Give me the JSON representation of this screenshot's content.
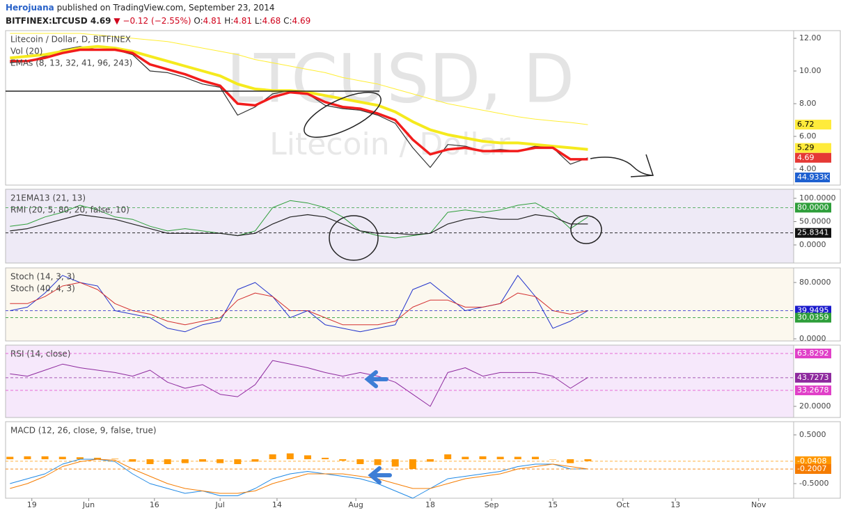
{
  "header": {
    "author": "Herojuana",
    "published": " published on TradingView.com, September 23, 2014",
    "symbol": "BITFINEX:LTCUSD 4.69",
    "change": "▼ −0.12 (−2.55%)",
    "open_label": "O:",
    "open": "4.81",
    "high_label": "H:",
    "high": "4.81",
    "low_label": "L:",
    "low": "4.68",
    "close_label": "C:",
    "close": "4.69"
  },
  "chart_data": [
    {
      "type": "line",
      "legend": [
        "Litecoin / Dollar, D, BITFINEX",
        "Vol (20)",
        "EMAs (8, 13, 32, 41, 96, 243)"
      ],
      "watermark": [
        "LTCUSD, D",
        "Litecoin / Dollar"
      ],
      "vol_label": "44.933K",
      "x": [
        1,
        5,
        9,
        13,
        17,
        21,
        25,
        29,
        33,
        37,
        41,
        45,
        49,
        53,
        57,
        61,
        65,
        69,
        73,
        77,
        81,
        85,
        89,
        93,
        97,
        101,
        105,
        109,
        113,
        117,
        121,
        125,
        129,
        133
      ],
      "xlim": [
        0,
        180
      ],
      "ylim": [
        3.02,
        12.47
      ],
      "yticks": [
        {
          "value": 4,
          "label": "4.00"
        },
        {
          "value": 6,
          "label": "6.00"
        },
        {
          "value": 8,
          "label": "8.00"
        },
        {
          "value": 10,
          "label": "10.00"
        },
        {
          "value": 12,
          "label": "12.00"
        }
      ],
      "series": [
        {
          "color": "#333333",
          "width": 1.2,
          "values": [
            10.5,
            10.6,
            10.9,
            11.3,
            11.5,
            11.3,
            11.3,
            11.0,
            10.0,
            9.9,
            9.6,
            9.2,
            9.0,
            7.3,
            7.8,
            8.6,
            8.8,
            8.6,
            7.9,
            7.7,
            7.6,
            7.3,
            6.8,
            5.3,
            4.1,
            5.5,
            5.4,
            5.1,
            5.2,
            5.1,
            5.4,
            5.3,
            4.3,
            4.69
          ]
        },
        {
          "color": "#ffee33",
          "width": 1,
          "values": [
            12.3,
            12.3,
            12.3,
            12.3,
            12.3,
            12.2,
            12.1,
            12.0,
            11.9,
            11.8,
            11.6,
            11.4,
            11.2,
            11.0,
            10.7,
            10.5,
            10.3,
            10.1,
            9.9,
            9.6,
            9.4,
            9.2,
            8.9,
            8.6,
            8.3,
            8.0,
            7.8,
            7.6,
            7.4,
            7.2,
            7.05,
            6.95,
            6.85,
            6.72
          ]
        },
        {
          "color": "#f5ea1e",
          "width": 4,
          "values": [
            10.8,
            10.9,
            11.0,
            11.2,
            11.4,
            11.5,
            11.4,
            11.2,
            10.9,
            10.6,
            10.3,
            10.0,
            9.7,
            9.2,
            8.9,
            8.8,
            8.8,
            8.7,
            8.5,
            8.3,
            8.1,
            7.9,
            7.5,
            6.9,
            6.4,
            6.1,
            5.9,
            5.7,
            5.6,
            5.6,
            5.5,
            5.4,
            5.3,
            5.2
          ]
        },
        {
          "color": "#f21c1c",
          "width": 3.5,
          "values": [
            10.6,
            10.6,
            10.8,
            11.1,
            11.3,
            11.3,
            11.3,
            11.1,
            10.4,
            10.1,
            9.8,
            9.4,
            9.1,
            8.0,
            7.9,
            8.4,
            8.7,
            8.6,
            8.1,
            7.8,
            7.7,
            7.4,
            7.0,
            5.8,
            4.9,
            5.2,
            5.3,
            5.1,
            5.1,
            5.1,
            5.3,
            5.3,
            4.6,
            4.6
          ]
        }
      ],
      "tags": [
        {
          "value": 6.72,
          "color": "#ffeb3b"
        },
        {
          "value": 5.29,
          "color": "#ffeb3b"
        },
        {
          "value": 4.69,
          "color": "#e53935"
        }
      ]
    },
    {
      "type": "line",
      "legend": [
        "21EMA13 (21, 13)",
        "RMI (20, 5, 80, 20, false, 10)"
      ],
      "x": [
        1,
        5,
        9,
        13,
        17,
        21,
        25,
        29,
        33,
        37,
        41,
        45,
        49,
        53,
        57,
        61,
        65,
        69,
        73,
        77,
        81,
        85,
        89,
        93,
        97,
        101,
        105,
        109,
        113,
        117,
        121,
        125,
        129,
        133
      ],
      "xlim": [
        0,
        180
      ],
      "ylim": [
        -38.8,
        119.4
      ],
      "yticks": [
        {
          "value": 100,
          "label": "100.0000"
        },
        {
          "value": 50,
          "label": "50.0000"
        },
        {
          "value": 0,
          "label": "0.0000"
        }
      ],
      "series": [
        {
          "color": "#2e9e3a",
          "width": 1,
          "values": [
            40,
            45,
            60,
            70,
            85,
            75,
            60,
            55,
            40,
            30,
            35,
            30,
            25,
            20,
            30,
            80,
            95,
            90,
            80,
            60,
            30,
            20,
            15,
            20,
            25,
            70,
            75,
            70,
            75,
            85,
            90,
            70,
            35,
            60
          ]
        },
        {
          "color": "#222222",
          "width": 1.2,
          "values": [
            30,
            35,
            45,
            55,
            65,
            60,
            55,
            45,
            35,
            25,
            25,
            25,
            25,
            20,
            25,
            45,
            60,
            65,
            60,
            45,
            30,
            25,
            25,
            22,
            25,
            45,
            55,
            60,
            55,
            55,
            65,
            60,
            45,
            45
          ]
        }
      ],
      "tags": [
        {
          "value": 80.0,
          "label": "80.0000",
          "color": "#2e9e3a"
        },
        {
          "value": 25.8341,
          "color": "#111111"
        }
      ]
    },
    {
      "type": "line",
      "legend": [
        "Stoch (14, 3, 3)",
        "Stoch (40, 4, 3)"
      ],
      "x": [
        1,
        5,
        9,
        13,
        17,
        21,
        25,
        29,
        33,
        37,
        41,
        45,
        49,
        53,
        57,
        61,
        65,
        69,
        73,
        77,
        81,
        85,
        89,
        93,
        97,
        101,
        105,
        109,
        113,
        117,
        121,
        125,
        129,
        133
      ],
      "xlim": [
        0,
        180
      ],
      "ylim": [
        -3,
        100.7
      ],
      "yticks": [
        {
          "value": 80,
          "label": "80.0000"
        },
        {
          "value": 0,
          "label": "0.0000"
        }
      ],
      "series": [
        {
          "color": "#2233cc",
          "width": 1,
          "values": [
            40,
            45,
            65,
            90,
            80,
            75,
            40,
            35,
            30,
            15,
            10,
            20,
            25,
            70,
            80,
            60,
            30,
            40,
            20,
            15,
            10,
            15,
            20,
            70,
            80,
            60,
            40,
            45,
            50,
            90,
            60,
            15,
            25,
            40
          ]
        },
        {
          "color": "#d32f2f",
          "width": 1,
          "values": [
            50,
            50,
            60,
            75,
            80,
            70,
            50,
            40,
            35,
            25,
            20,
            25,
            30,
            55,
            65,
            60,
            40,
            40,
            30,
            20,
            20,
            20,
            25,
            45,
            55,
            55,
            45,
            45,
            50,
            65,
            60,
            40,
            35,
            40
          ]
        }
      ],
      "tags": [
        {
          "value": 39.9495,
          "color": "#1a1acc"
        },
        {
          "value": 30.0359,
          "color": "#2e9e3a"
        }
      ]
    },
    {
      "type": "line",
      "legend": [
        "RSI (14, close)"
      ],
      "x": [
        1,
        5,
        9,
        13,
        17,
        21,
        25,
        29,
        33,
        37,
        41,
        45,
        49,
        53,
        57,
        61,
        65,
        69,
        73,
        77,
        81,
        85,
        89,
        93,
        97,
        101,
        105,
        109,
        113,
        117,
        121,
        125,
        129,
        133
      ],
      "xlim": [
        0,
        180
      ],
      "ylim": [
        10.77,
        70.75
      ],
      "yticks": [
        {
          "value": 20,
          "label": "20.0000"
        }
      ],
      "series": [
        {
          "color": "#8e2a9e",
          "width": 1,
          "values": [
            47,
            45,
            50,
            55,
            52,
            50,
            48,
            45,
            50,
            40,
            35,
            38,
            30,
            28,
            38,
            58,
            55,
            52,
            48,
            45,
            48,
            45,
            40,
            30,
            20,
            48,
            52,
            45,
            48,
            48,
            48,
            45,
            35,
            44
          ]
        }
      ],
      "tags": [
        {
          "value": 63.8292,
          "color": "#e040c8"
        },
        {
          "value": 43.7273,
          "color": "#8e2a9e"
        },
        {
          "value": 33.2678,
          "color": "#e040c8"
        }
      ]
    },
    {
      "type": "line",
      "legend": [
        "MACD (12, 26, close, 9, false, true)"
      ],
      "x": [
        1,
        5,
        9,
        13,
        17,
        21,
        25,
        29,
        33,
        37,
        41,
        45,
        49,
        53,
        57,
        61,
        65,
        69,
        73,
        77,
        81,
        85,
        89,
        93,
        97,
        101,
        105,
        109,
        113,
        117,
        121,
        125,
        129,
        133
      ],
      "xlim": [
        0,
        180
      ],
      "ylim": [
        -0.8,
        0.771
      ],
      "yticks": [
        {
          "value": 0.5,
          "label": "0.5000"
        },
        {
          "value": -0.5,
          "label": "-0.5000"
        }
      ],
      "xticks": [
        {
          "value": 6,
          "label": "19"
        },
        {
          "value": 19,
          "label": "Jun"
        },
        {
          "value": 34,
          "label": "16"
        },
        {
          "value": 49,
          "label": "Jul"
        },
        {
          "value": 62,
          "label": "14"
        },
        {
          "value": 80,
          "label": "Aug"
        },
        {
          "value": 97,
          "label": "18"
        },
        {
          "value": 111,
          "label": "Sep"
        },
        {
          "value": 125,
          "label": "15"
        },
        {
          "value": 141,
          "label": "Oct"
        },
        {
          "value": 153,
          "label": "13"
        },
        {
          "value": 172,
          "label": "Nov"
        }
      ],
      "histogram": {
        "color": "#ff9800",
        "values": [
          0.05,
          0.06,
          0.06,
          0.05,
          0.04,
          0.03,
          0.01,
          -0.05,
          -0.1,
          -0.1,
          -0.08,
          -0.05,
          -0.08,
          -0.1,
          -0.05,
          0.1,
          0.12,
          0.08,
          0.03,
          -0.03,
          -0.1,
          -0.12,
          -0.15,
          -0.2,
          -0.05,
          0.1,
          0.05,
          0.06,
          0.05,
          0.05,
          0.05,
          0.0,
          -0.08,
          -0.04
        ]
      },
      "series": [
        {
          "color": "#1e88e5",
          "width": 1,
          "values": [
            -0.5,
            -0.4,
            -0.3,
            -0.1,
            0.0,
            0.0,
            -0.05,
            -0.3,
            -0.5,
            -0.6,
            -0.7,
            -0.65,
            -0.75,
            -0.75,
            -0.6,
            -0.4,
            -0.3,
            -0.25,
            -0.3,
            -0.35,
            -0.4,
            -0.5,
            -0.65,
            -0.8,
            -0.6,
            -0.4,
            -0.35,
            -0.3,
            -0.25,
            -0.15,
            -0.1,
            -0.1,
            -0.2,
            -0.2
          ]
        },
        {
          "color": "#f57c00",
          "width": 1,
          "values": [
            -0.6,
            -0.5,
            -0.35,
            -0.15,
            -0.05,
            0.0,
            -0.02,
            -0.2,
            -0.35,
            -0.5,
            -0.6,
            -0.65,
            -0.7,
            -0.7,
            -0.65,
            -0.5,
            -0.4,
            -0.3,
            -0.3,
            -0.3,
            -0.35,
            -0.4,
            -0.5,
            -0.6,
            -0.6,
            -0.5,
            -0.4,
            -0.35,
            -0.3,
            -0.2,
            -0.15,
            -0.1,
            -0.15,
            -0.2
          ]
        }
      ],
      "tags": [
        {
          "value": -0.0408,
          "color": "#ff9800"
        },
        {
          "value": -0.2007,
          "color": "#f57c00"
        }
      ]
    }
  ]
}
